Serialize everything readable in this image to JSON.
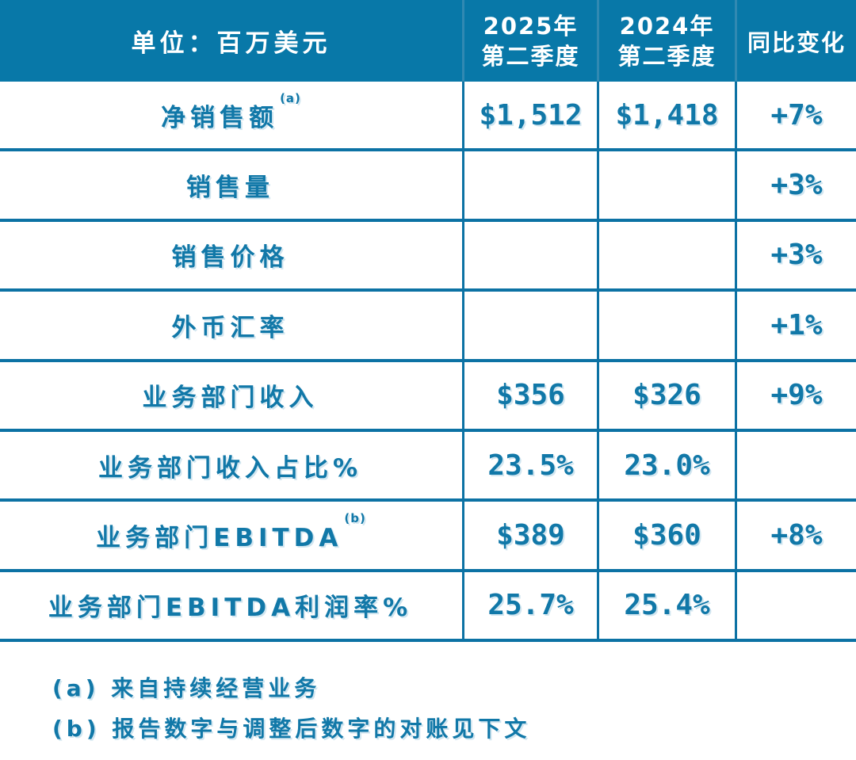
{
  "theme": {
    "header_bg": "#0878A8",
    "header_divider": "#3189B2",
    "grid_line": "#0C72A4",
    "text_teal": "#1178A8",
    "header_text": "#FFFFFF"
  },
  "table": {
    "header": {
      "unit": "单位：百万美元",
      "q2_2025_line1": "2025年",
      "q2_2025_line2": "第二季度",
      "q2_2024_line1": "2024年",
      "q2_2024_line2": "第二季度",
      "yoy": "同比变化"
    },
    "rows": [
      {
        "label": "净销售额",
        "sup": "(a)",
        "q2_2025": "$1,512",
        "q2_2024": "$1,418",
        "yoy": "+7%"
      },
      {
        "label": "销售量",
        "sup": "",
        "q2_2025": "",
        "q2_2024": "",
        "yoy": "+3%"
      },
      {
        "label": "销售价格",
        "sup": "",
        "q2_2025": "",
        "q2_2024": "",
        "yoy": "+3%"
      },
      {
        "label": "外币汇率",
        "sup": "",
        "q2_2025": "",
        "q2_2024": "",
        "yoy": "+1%"
      },
      {
        "label": "业务部门收入",
        "sup": "",
        "q2_2025": "$356",
        "q2_2024": "$326",
        "yoy": "+9%"
      },
      {
        "label": "业务部门收入占比%",
        "sup": "",
        "q2_2025": "23.5%",
        "q2_2024": "23.0%",
        "yoy": ""
      },
      {
        "label": "业务部门EBITDA",
        "sup": "(b)",
        "q2_2025": "$389",
        "q2_2024": "$360",
        "yoy": "+8%"
      },
      {
        "label": "业务部门EBITDA利润率%",
        "sup": "",
        "q2_2025": "25.7%",
        "q2_2024": "25.4%",
        "yoy": ""
      }
    ]
  },
  "footnotes": [
    "(a) 来自持续经营业务",
    "(b) 报告数字与调整后数字的对账见下文"
  ],
  "chart_data": {
    "type": "table",
    "title": "单位：百万美元",
    "columns": [
      "单位：百万美元",
      "2025年第二季度",
      "2024年第二季度",
      "同比变化"
    ],
    "rows": [
      [
        "净销售额(a)",
        "$1,512",
        "$1,418",
        "+7%"
      ],
      [
        "销售量",
        "",
        "",
        "+3%"
      ],
      [
        "销售价格",
        "",
        "",
        "+3%"
      ],
      [
        "外币汇率",
        "",
        "",
        "+1%"
      ],
      [
        "业务部门收入",
        "$356",
        "$326",
        "+9%"
      ],
      [
        "业务部门收入占比%",
        "23.5%",
        "23.0%",
        ""
      ],
      [
        "业务部门EBITDA(b)",
        "$389",
        "$360",
        "+8%"
      ],
      [
        "业务部门EBITDA利润率%",
        "25.7%",
        "25.4%",
        ""
      ]
    ],
    "footnotes": [
      "(a) 来自持续经营业务",
      "(b) 报告数字与调整后数字的对账见下文"
    ]
  }
}
